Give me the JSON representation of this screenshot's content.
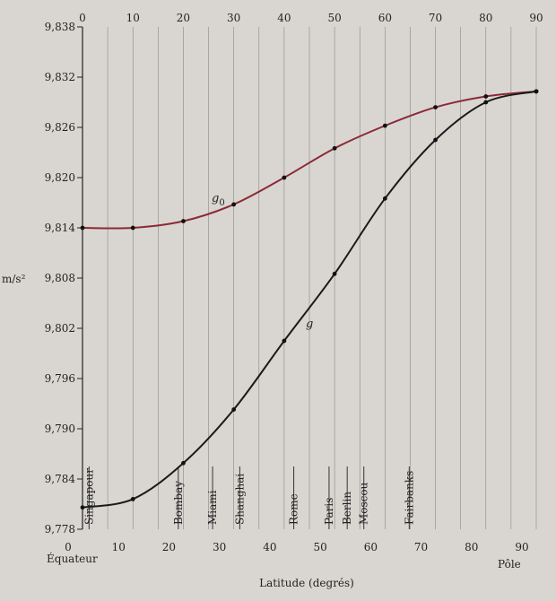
{
  "chart_data": {
    "type": "line",
    "xlabel": "Latitude (degrés)",
    "ylabel": "m/s²",
    "x_start_label": "Équateur",
    "x_end_label": "Pôle",
    "xlim": [
      0,
      90
    ],
    "ylim": [
      9.778,
      9.838
    ],
    "x_ticks": [
      "0",
      "10",
      "20",
      "30",
      "40",
      "50",
      "60",
      "70",
      "80",
      "90"
    ],
    "top_ticks": [
      "0",
      "10",
      "20",
      "30",
      "40",
      "50",
      "60",
      "70",
      "80",
      "90"
    ],
    "y_ticks": [
      {
        "value": 9.778,
        "label": "9,778"
      },
      {
        "value": 9.784,
        "label": "9,784"
      },
      {
        "value": 9.79,
        "label": "9,790"
      },
      {
        "value": 9.796,
        "label": "9,796"
      },
      {
        "value": 9.802,
        "label": "9,802"
      },
      {
        "value": 9.808,
        "label": "9,808"
      },
      {
        "value": 9.814,
        "label": "9,814"
      },
      {
        "value": 9.82,
        "label": "9,820"
      },
      {
        "value": 9.826,
        "label": "9,826"
      },
      {
        "value": 9.832,
        "label": "9,832"
      },
      {
        "value": 9.838,
        "label": "9,838"
      }
    ],
    "grid": "vertical",
    "series": [
      {
        "name": "g0",
        "label_base": "g",
        "label_sub": "0",
        "color": "#8b2a35",
        "points": [
          [
            0,
            9.814
          ],
          [
            10,
            9.814
          ],
          [
            20,
            9.8148
          ],
          [
            30,
            9.8168
          ],
          [
            40,
            9.82
          ],
          [
            50,
            9.8235
          ],
          [
            60,
            9.8262
          ],
          [
            70,
            9.8284
          ],
          [
            80,
            9.8297
          ],
          [
            90,
            9.8303
          ]
        ]
      },
      {
        "name": "g",
        "label": "g",
        "color": "#1a1a1a",
        "points": [
          [
            0,
            9.7806
          ],
          [
            10,
            9.7816
          ],
          [
            20,
            9.7859
          ],
          [
            30,
            9.7923
          ],
          [
            40,
            9.8005
          ],
          [
            50,
            9.8085
          ],
          [
            60,
            9.8175
          ],
          [
            70,
            9.8245
          ],
          [
            80,
            9.829
          ],
          [
            90,
            9.8303
          ]
        ]
      }
    ],
    "cities": [
      {
        "name": "Singapour",
        "lat": 1.3
      },
      {
        "name": "Bombay",
        "lat": 19
      },
      {
        "name": "Miami",
        "lat": 25.8
      },
      {
        "name": "Shanghai",
        "lat": 31.2
      },
      {
        "name": "Rome",
        "lat": 41.9
      },
      {
        "name": "Paris",
        "lat": 48.9
      },
      {
        "name": "Berlin",
        "lat": 52.5
      },
      {
        "name": "Moscou",
        "lat": 55.8
      },
      {
        "name": "Fairbanks",
        "lat": 64.8
      }
    ]
  }
}
